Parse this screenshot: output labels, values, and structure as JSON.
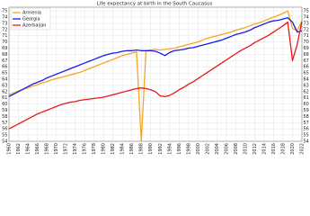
{
  "chart_data": {
    "type": "line",
    "title": "Life expectancy at birth in the South Caucasus",
    "x": [
      1960,
      1961,
      1962,
      1963,
      1964,
      1965,
      1966,
      1967,
      1968,
      1969,
      1970,
      1971,
      1972,
      1973,
      1974,
      1975,
      1976,
      1977,
      1978,
      1979,
      1980,
      1981,
      1982,
      1983,
      1984,
      1985,
      1986,
      1987,
      1988,
      1989,
      1990,
      1991,
      1992,
      1993,
      1994,
      1995,
      1996,
      1997,
      1998,
      1999,
      2000,
      2001,
      2002,
      2003,
      2004,
      2005,
      2006,
      2007,
      2008,
      2009,
      2010,
      2011,
      2012,
      2013,
      2014,
      2015,
      2016,
      2017,
      2018,
      2019,
      2020,
      2021,
      2022
    ],
    "series": [
      {
        "name": "Armenia",
        "color": "#f5a623",
        "values": [
          61.5,
          61.8,
          62.1,
          62.4,
          62.6,
          62.9,
          63.1,
          63.4,
          63.6,
          63.9,
          64.1,
          64.3,
          64.5,
          64.7,
          64.9,
          65.1,
          65.4,
          65.7,
          66.0,
          66.3,
          66.6,
          66.9,
          67.2,
          67.5,
          67.8,
          68.0,
          68.2,
          68.4,
          54.0,
          68.6,
          68.7,
          68.8,
          68.7,
          68.8,
          68.9,
          69.0,
          69.2,
          69.4,
          69.6,
          69.8,
          70.0,
          70.3,
          70.6,
          70.8,
          71.0,
          71.2,
          71.4,
          71.6,
          71.9,
          72.1,
          72.3,
          72.6,
          72.9,
          73.1,
          73.4,
          73.7,
          74.0,
          74.3,
          74.6,
          75.0,
          72.2,
          71.8,
          73.4
        ]
      },
      {
        "name": "Georgia",
        "color": "#1a1aee",
        "values": [
          61.2,
          61.6,
          62.0,
          62.4,
          62.8,
          63.2,
          63.5,
          63.8,
          64.2,
          64.5,
          64.8,
          65.1,
          65.4,
          65.7,
          66.0,
          66.3,
          66.6,
          66.9,
          67.2,
          67.5,
          67.8,
          68.0,
          68.2,
          68.3,
          68.5,
          68.6,
          68.6,
          68.7,
          68.6,
          68.6,
          68.6,
          68.5,
          68.2,
          67.8,
          68.3,
          68.6,
          68.7,
          68.8,
          69.0,
          69.1,
          69.3,
          69.5,
          69.7,
          69.9,
          70.1,
          70.3,
          70.6,
          70.9,
          71.2,
          71.4,
          71.6,
          71.9,
          72.3,
          72.6,
          72.9,
          73.2,
          73.4,
          73.5,
          73.7,
          73.9,
          73.2,
          71.6,
          71.8
        ]
      },
      {
        "name": "Azerbaijan",
        "color": "#e8161b",
        "values": [
          56.0,
          56.4,
          56.8,
          57.2,
          57.6,
          58.0,
          58.4,
          58.7,
          59.0,
          59.3,
          59.6,
          59.9,
          60.1,
          60.3,
          60.4,
          60.6,
          60.7,
          60.8,
          60.9,
          61.0,
          61.1,
          61.3,
          61.5,
          61.7,
          61.9,
          62.1,
          62.3,
          62.5,
          62.6,
          62.5,
          62.3,
          62.0,
          61.3,
          61.2,
          61.4,
          61.8,
          62.3,
          62.7,
          63.2,
          63.6,
          64.1,
          64.6,
          65.1,
          65.6,
          66.1,
          66.6,
          67.1,
          67.6,
          68.1,
          68.6,
          69.0,
          69.4,
          69.9,
          70.3,
          70.7,
          71.1,
          71.6,
          72.1,
          72.6,
          73.2,
          67.0,
          69.6,
          73.3
        ]
      }
    ],
    "xlim": [
      1960,
      2022
    ],
    "xticks": [
      1960,
      1962,
      1964,
      1966,
      1968,
      1970,
      1972,
      1974,
      1976,
      1978,
      1980,
      1982,
      1984,
      1986,
      1988,
      1990,
      1992,
      1994,
      1996,
      1998,
      2000,
      2002,
      2004,
      2006,
      2008,
      2010,
      2012,
      2014,
      2016,
      2018,
      2020,
      2022
    ],
    "ylim": [
      54,
      75.6
    ],
    "yticks": [
      54,
      55,
      56,
      57,
      58,
      59,
      60,
      61,
      62,
      63,
      64,
      65,
      66,
      67,
      68,
      69,
      70,
      71,
      72,
      73,
      74,
      75
    ],
    "grid": true,
    "legend": "upper left"
  }
}
